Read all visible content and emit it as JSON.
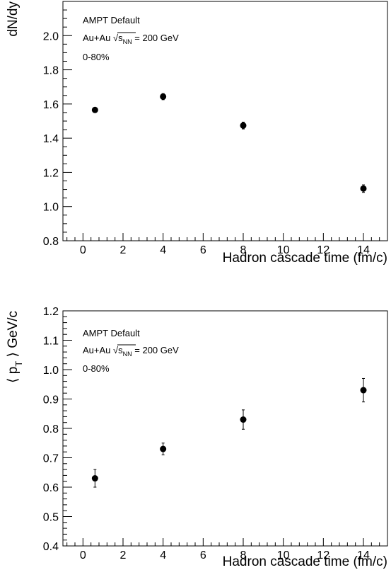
{
  "chart_data": [
    {
      "type": "scatter",
      "xlabel": "Hadron cascade time (fm/c)",
      "ylabel": "dN/dy",
      "xlim": [
        -1,
        15.2
      ],
      "ylim": [
        0.8,
        2.2
      ],
      "xticks": [
        0,
        2,
        4,
        6,
        8,
        10,
        12,
        14
      ],
      "xtick_labels": [
        "0",
        "2",
        "4",
        "6",
        "8",
        "10",
        "12",
        "14"
      ],
      "yticks": [
        0.8,
        1.0,
        1.2,
        1.4,
        1.6,
        1.8,
        2.0
      ],
      "ytick_labels": [
        "0.8",
        "1.0",
        "1.2",
        "1.4",
        "1.6",
        "1.8",
        "2.0"
      ],
      "annotations": {
        "line1": "AMPT Default",
        "line2_prefix": "Au+Au ",
        "line2_s": "s",
        "line2_sub": "NN",
        "line2_suffix": " = 200 GeV",
        "line3": "0-80%"
      },
      "grid": false,
      "series": [
        {
          "points": [
            {
              "x": 0.6,
              "y": 1.565,
              "err": 0.012
            },
            {
              "x": 4,
              "y": 1.643,
              "err": 0.018
            },
            {
              "x": 8,
              "y": 1.474,
              "err": 0.02
            },
            {
              "x": 14,
              "y": 1.105,
              "err": 0.022
            }
          ]
        }
      ]
    },
    {
      "type": "scatter",
      "xlabel": "Hadron cascade time (fm/c)",
      "ylabel": "⟨ p T ⟩ GeV/c",
      "ylabel_parts": {
        "open": "⟨ p",
        "sub": "T",
        "close": " ⟩ GeV/c"
      },
      "xlim": [
        -1,
        15.2
      ],
      "ylim": [
        0.4,
        1.2
      ],
      "xticks": [
        0,
        2,
        4,
        6,
        8,
        10,
        12,
        14
      ],
      "xtick_labels": [
        "0",
        "2",
        "4",
        "6",
        "8",
        "10",
        "12",
        "14"
      ],
      "yticks": [
        0.4,
        0.5,
        0.6,
        0.7,
        0.8,
        0.9,
        1.0,
        1.1,
        1.2
      ],
      "ytick_labels": [
        "0.4",
        "0.5",
        "0.6",
        "0.7",
        "0.8",
        "0.9",
        "1.0",
        "1.1",
        "1.2"
      ],
      "annotations": {
        "line1": "AMPT Default",
        "line2_prefix": "Au+Au ",
        "line2_s": "s",
        "line2_sub": "NN",
        "line2_suffix": " = 200 GeV",
        "line3": "0-80%"
      },
      "grid": false,
      "series": [
        {
          "points": [
            {
              "x": 0.6,
              "y": 0.63,
              "err": 0.03
            },
            {
              "x": 4,
              "y": 0.73,
              "err": 0.02
            },
            {
              "x": 8,
              "y": 0.83,
              "err": 0.033
            },
            {
              "x": 14,
              "y": 0.93,
              "err": 0.04
            }
          ]
        }
      ]
    }
  ]
}
